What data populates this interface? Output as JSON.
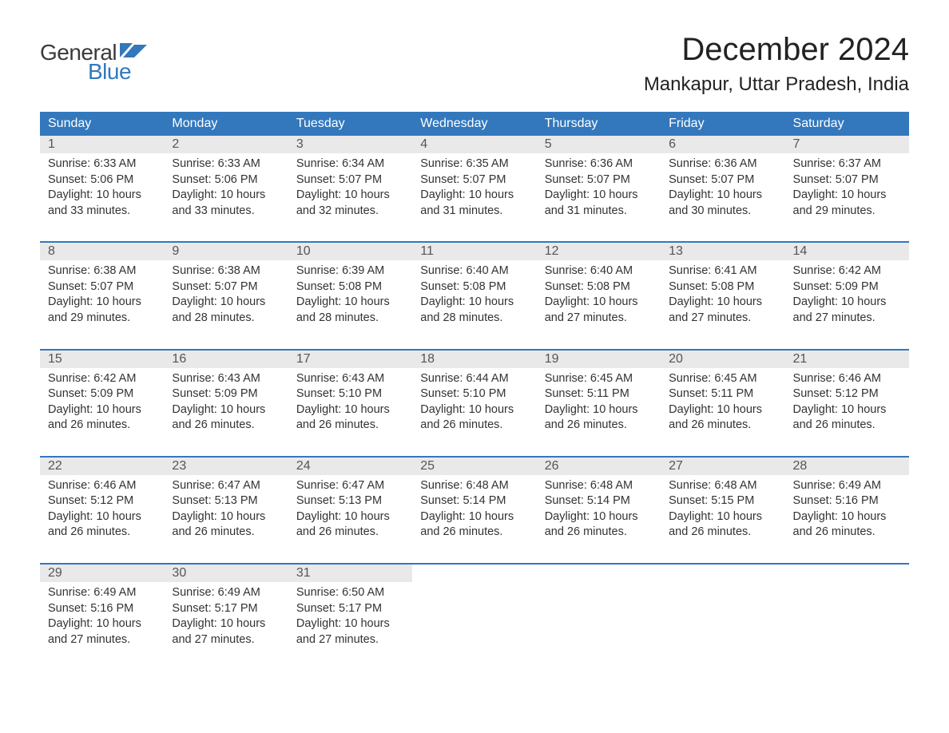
{
  "brand": {
    "word1": "General",
    "word2": "Blue",
    "word1_color": "#3a3a3a",
    "word2_color": "#3378bd",
    "flag_color": "#3378bd"
  },
  "title": "December 2024",
  "location": "Mankapur, Uttar Pradesh, India",
  "colors": {
    "header_bg": "#3378bd",
    "header_text": "#ffffff",
    "daynum_bg": "#e9e9e9",
    "daynum_text": "#555555",
    "body_text": "#333333",
    "page_bg": "#ffffff",
    "week_rule": "#3378bd"
  },
  "typography": {
    "title_fontsize": 40,
    "location_fontsize": 24,
    "dayheader_fontsize": 16,
    "daynum_fontsize": 16,
    "cell_fontsize": 14.5,
    "font_family": "Segoe UI, Arial, sans-serif"
  },
  "day_headers": [
    "Sunday",
    "Monday",
    "Tuesday",
    "Wednesday",
    "Thursday",
    "Friday",
    "Saturday"
  ],
  "weeks": [
    [
      {
        "n": "1",
        "sunrise": "6:33 AM",
        "sunset": "5:06 PM",
        "daylight": "10 hours and 33 minutes."
      },
      {
        "n": "2",
        "sunrise": "6:33 AM",
        "sunset": "5:06 PM",
        "daylight": "10 hours and 33 minutes."
      },
      {
        "n": "3",
        "sunrise": "6:34 AM",
        "sunset": "5:07 PM",
        "daylight": "10 hours and 32 minutes."
      },
      {
        "n": "4",
        "sunrise": "6:35 AM",
        "sunset": "5:07 PM",
        "daylight": "10 hours and 31 minutes."
      },
      {
        "n": "5",
        "sunrise": "6:36 AM",
        "sunset": "5:07 PM",
        "daylight": "10 hours and 31 minutes."
      },
      {
        "n": "6",
        "sunrise": "6:36 AM",
        "sunset": "5:07 PM",
        "daylight": "10 hours and 30 minutes."
      },
      {
        "n": "7",
        "sunrise": "6:37 AM",
        "sunset": "5:07 PM",
        "daylight": "10 hours and 29 minutes."
      }
    ],
    [
      {
        "n": "8",
        "sunrise": "6:38 AM",
        "sunset": "5:07 PM",
        "daylight": "10 hours and 29 minutes."
      },
      {
        "n": "9",
        "sunrise": "6:38 AM",
        "sunset": "5:07 PM",
        "daylight": "10 hours and 28 minutes."
      },
      {
        "n": "10",
        "sunrise": "6:39 AM",
        "sunset": "5:08 PM",
        "daylight": "10 hours and 28 minutes."
      },
      {
        "n": "11",
        "sunrise": "6:40 AM",
        "sunset": "5:08 PM",
        "daylight": "10 hours and 28 minutes."
      },
      {
        "n": "12",
        "sunrise": "6:40 AM",
        "sunset": "5:08 PM",
        "daylight": "10 hours and 27 minutes."
      },
      {
        "n": "13",
        "sunrise": "6:41 AM",
        "sunset": "5:08 PM",
        "daylight": "10 hours and 27 minutes."
      },
      {
        "n": "14",
        "sunrise": "6:42 AM",
        "sunset": "5:09 PM",
        "daylight": "10 hours and 27 minutes."
      }
    ],
    [
      {
        "n": "15",
        "sunrise": "6:42 AM",
        "sunset": "5:09 PM",
        "daylight": "10 hours and 26 minutes."
      },
      {
        "n": "16",
        "sunrise": "6:43 AM",
        "sunset": "5:09 PM",
        "daylight": "10 hours and 26 minutes."
      },
      {
        "n": "17",
        "sunrise": "6:43 AM",
        "sunset": "5:10 PM",
        "daylight": "10 hours and 26 minutes."
      },
      {
        "n": "18",
        "sunrise": "6:44 AM",
        "sunset": "5:10 PM",
        "daylight": "10 hours and 26 minutes."
      },
      {
        "n": "19",
        "sunrise": "6:45 AM",
        "sunset": "5:11 PM",
        "daylight": "10 hours and 26 minutes."
      },
      {
        "n": "20",
        "sunrise": "6:45 AM",
        "sunset": "5:11 PM",
        "daylight": "10 hours and 26 minutes."
      },
      {
        "n": "21",
        "sunrise": "6:46 AM",
        "sunset": "5:12 PM",
        "daylight": "10 hours and 26 minutes."
      }
    ],
    [
      {
        "n": "22",
        "sunrise": "6:46 AM",
        "sunset": "5:12 PM",
        "daylight": "10 hours and 26 minutes."
      },
      {
        "n": "23",
        "sunrise": "6:47 AM",
        "sunset": "5:13 PM",
        "daylight": "10 hours and 26 minutes."
      },
      {
        "n": "24",
        "sunrise": "6:47 AM",
        "sunset": "5:13 PM",
        "daylight": "10 hours and 26 minutes."
      },
      {
        "n": "25",
        "sunrise": "6:48 AM",
        "sunset": "5:14 PM",
        "daylight": "10 hours and 26 minutes."
      },
      {
        "n": "26",
        "sunrise": "6:48 AM",
        "sunset": "5:14 PM",
        "daylight": "10 hours and 26 minutes."
      },
      {
        "n": "27",
        "sunrise": "6:48 AM",
        "sunset": "5:15 PM",
        "daylight": "10 hours and 26 minutes."
      },
      {
        "n": "28",
        "sunrise": "6:49 AM",
        "sunset": "5:16 PM",
        "daylight": "10 hours and 26 minutes."
      }
    ],
    [
      {
        "n": "29",
        "sunrise": "6:49 AM",
        "sunset": "5:16 PM",
        "daylight": "10 hours and 27 minutes."
      },
      {
        "n": "30",
        "sunrise": "6:49 AM",
        "sunset": "5:17 PM",
        "daylight": "10 hours and 27 minutes."
      },
      {
        "n": "31",
        "sunrise": "6:50 AM",
        "sunset": "5:17 PM",
        "daylight": "10 hours and 27 minutes."
      },
      null,
      null,
      null,
      null
    ]
  ],
  "labels": {
    "sunrise": "Sunrise: ",
    "sunset": "Sunset: ",
    "daylight": "Daylight: "
  }
}
